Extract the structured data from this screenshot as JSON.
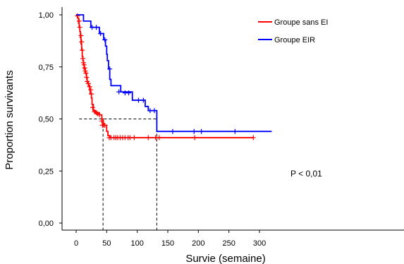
{
  "chart_data": {
    "type": "line",
    "subtype": "kaplan-meier-step",
    "xlabel": "Survie (semaine)",
    "ylabel": "Proportion survivants",
    "xlim": [
      -10,
      320
    ],
    "ylim": [
      0,
      1.04
    ],
    "xticks": [
      0,
      50,
      100,
      150,
      200,
      250,
      300
    ],
    "xtick_labels": [
      "0",
      "50",
      "100",
      "150",
      "200",
      "250",
      "300"
    ],
    "yticks": [
      0,
      0.25,
      0.5,
      0.75,
      1.0
    ],
    "ytick_labels": [
      "0,00",
      "0,25",
      "0,50",
      "0,75",
      "1,00"
    ],
    "legend_position": "top-right",
    "annotation": "P < 0,01",
    "series": [
      {
        "name": "Groupe sans EI",
        "color": "#ff0000",
        "steps": [
          [
            0,
            1.0
          ],
          [
            2,
            0.985
          ],
          [
            4,
            0.96
          ],
          [
            5,
            0.94
          ],
          [
            6,
            0.92
          ],
          [
            7,
            0.89
          ],
          [
            8,
            0.86
          ],
          [
            9,
            0.83
          ],
          [
            10,
            0.8
          ],
          [
            11,
            0.78
          ],
          [
            12,
            0.76
          ],
          [
            13,
            0.74
          ],
          [
            15,
            0.72
          ],
          [
            17,
            0.7
          ],
          [
            18,
            0.68
          ],
          [
            20,
            0.66
          ],
          [
            22,
            0.64
          ],
          [
            23,
            0.62
          ],
          [
            25,
            0.6
          ],
          [
            26,
            0.57
          ],
          [
            28,
            0.54
          ],
          [
            32,
            0.53
          ],
          [
            38,
            0.52
          ],
          [
            42,
            0.5
          ],
          [
            44,
            0.48
          ],
          [
            45,
            0.47
          ],
          [
            50,
            0.44
          ],
          [
            52,
            0.42
          ],
          [
            55,
            0.41
          ],
          [
            290,
            0.41
          ]
        ],
        "censored": [
          [
            2,
            0.995
          ],
          [
            5,
            0.97
          ],
          [
            6,
            0.94
          ],
          [
            8,
            0.9
          ],
          [
            9,
            0.87
          ],
          [
            10,
            0.83
          ],
          [
            11,
            0.79
          ],
          [
            12,
            0.77
          ],
          [
            13,
            0.76
          ],
          [
            14,
            0.745
          ],
          [
            15,
            0.73
          ],
          [
            16,
            0.72
          ],
          [
            17,
            0.7
          ],
          [
            18,
            0.68
          ],
          [
            20,
            0.67
          ],
          [
            22,
            0.655
          ],
          [
            24,
            0.64
          ],
          [
            25,
            0.62
          ],
          [
            27,
            0.555
          ],
          [
            30,
            0.535
          ],
          [
            33,
            0.53
          ],
          [
            35,
            0.525
          ],
          [
            38,
            0.52
          ],
          [
            42,
            0.49
          ],
          [
            43,
            0.47
          ],
          [
            45,
            0.47
          ],
          [
            47,
            0.47
          ],
          [
            54,
            0.41
          ],
          [
            57,
            0.41
          ],
          [
            62,
            0.41
          ],
          [
            65,
            0.41
          ],
          [
            68,
            0.41
          ],
          [
            72,
            0.41
          ],
          [
            76,
            0.41
          ],
          [
            80,
            0.41
          ],
          [
            85,
            0.41
          ],
          [
            88,
            0.41
          ],
          [
            95,
            0.41
          ],
          [
            118,
            0.41
          ],
          [
            130,
            0.41
          ],
          [
            136,
            0.41
          ],
          [
            194,
            0.41
          ],
          [
            290,
            0.41
          ]
        ]
      },
      {
        "name": "Groupe EIR",
        "color": "#0000ff",
        "steps": [
          [
            0,
            1.0
          ],
          [
            11,
            1.0
          ],
          [
            12,
            0.97
          ],
          [
            24,
            0.94
          ],
          [
            38,
            0.91
          ],
          [
            43,
            0.91
          ],
          [
            45,
            0.88
          ],
          [
            48,
            0.85
          ],
          [
            50,
            0.81
          ],
          [
            51,
            0.78
          ],
          [
            53,
            0.74
          ],
          [
            55,
            0.69
          ],
          [
            57,
            0.66
          ],
          [
            73,
            0.63
          ],
          [
            92,
            0.59
          ],
          [
            113,
            0.56
          ],
          [
            118,
            0.54
          ],
          [
            132,
            0.44
          ],
          [
            320,
            0.44
          ]
        ],
        "censored": [
          [
            26,
            0.94
          ],
          [
            33,
            0.94
          ],
          [
            40,
            0.91
          ],
          [
            47,
            0.88
          ],
          [
            55,
            0.74
          ],
          [
            70,
            0.63
          ],
          [
            80,
            0.625
          ],
          [
            86,
            0.625
          ],
          [
            102,
            0.59
          ],
          [
            110,
            0.59
          ],
          [
            121,
            0.54
          ],
          [
            128,
            0.54
          ],
          [
            158,
            0.44
          ],
          [
            193,
            0.44
          ],
          [
            205,
            0.44
          ],
          [
            260,
            0.44
          ]
        ]
      }
    ],
    "reference_lines": {
      "median_y": 0.5,
      "median_x": [
        44,
        132
      ]
    }
  }
}
